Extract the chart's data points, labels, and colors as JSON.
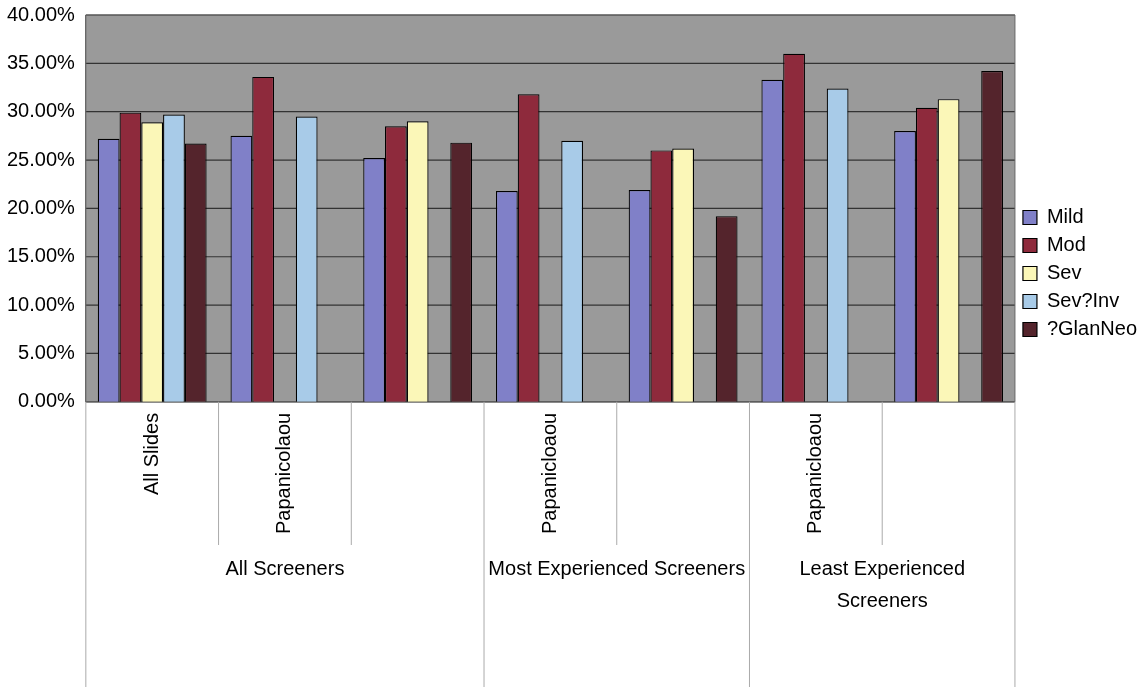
{
  "chart_data": {
    "type": "bar",
    "categories": [
      "All Slides",
      "Papanicolaou",
      null,
      "Papanicloaou",
      null,
      "Papanicloaou",
      null
    ],
    "series": [
      {
        "name": "Mild",
        "color": "#8080c8",
        "values": [
          27.2,
          27.5,
          25.2,
          21.8,
          21.9,
          33.3,
          28.0
        ]
      },
      {
        "name": "Mod",
        "color": "#8e2a3c",
        "values": [
          29.9,
          33.6,
          28.5,
          31.8,
          26.0,
          36.0,
          30.4
        ]
      },
      {
        "name": "Sev",
        "color": "#fbf7b8",
        "values": [
          28.9,
          null,
          29.0,
          null,
          26.2,
          null,
          31.3
        ]
      },
      {
        "name": "Sev?Inv",
        "color": "#a8cbe8",
        "values": [
          29.7,
          29.5,
          null,
          27.0,
          null,
          32.4,
          null
        ]
      },
      {
        "name": "?GlanNeo",
        "color": "#54242c",
        "values": [
          26.7,
          null,
          26.8,
          null,
          19.2,
          null,
          34.2
        ]
      }
    ],
    "ylim": [
      0,
      40
    ],
    "yticks": [
      {
        "value": 0,
        "label": "0.00%"
      },
      {
        "value": 5,
        "label": "5.00%"
      },
      {
        "value": 10,
        "label": "10.00%"
      },
      {
        "value": 15,
        "label": "15.00%"
      },
      {
        "value": 20,
        "label": "20.00%"
      },
      {
        "value": 25,
        "label": "25.00%"
      },
      {
        "value": 30,
        "label": "30.00%"
      },
      {
        "value": 35,
        "label": "35.00%"
      },
      {
        "value": 40,
        "label": "40.00%"
      }
    ],
    "annotations": [
      "All Screeners",
      "Most Experienced Screeners",
      "Least Experienced Screeners"
    ],
    "grid": "y",
    "legend": "right"
  }
}
